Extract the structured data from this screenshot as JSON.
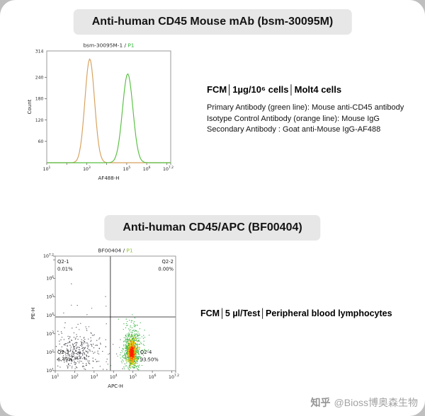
{
  "page": {
    "watermark_brand": "知乎",
    "watermark_handle": "@Bioss博奥森生物"
  },
  "panel_top": {
    "title": "Anti-human CD45 Mouse mAb (bsm-30095M)",
    "info_header": "FCM│1µg/10⁶ cells│Molt4 cells",
    "info_lines": [
      "Primary Antibody (green line): Mouse anti-CD45 antibody",
      "Isotype Control Antibody (orange line): Mouse IgG",
      "Secondary Antibody : Goat anti-Mouse IgG-AF488"
    ]
  },
  "panel_bottom": {
    "title": "Anti-human CD45/APC (BF00404)",
    "info_header": "FCM│5 µl/Test│Peripheral blood lymphocytes"
  },
  "chart_data": [
    {
      "type": "histogram",
      "title": "bsm-30095M-1 /",
      "gate_label": "P1",
      "gate_color": "#2eb334",
      "xlabel": "AF488-H",
      "ylabel": "Count",
      "x_log_range": [
        1,
        7.2
      ],
      "x_ticks": [
        {
          "v": 1,
          "label": "1"
        },
        {
          "v": 3,
          "label": "3"
        },
        {
          "v": 5,
          "label": "5"
        },
        {
          "v": 6,
          "label": "6"
        },
        {
          "v": 7.2,
          "label": "7.2"
        }
      ],
      "y_max": 314,
      "y_max_label": "314",
      "y_ticks": [
        60,
        120,
        180,
        240
      ],
      "series": [
        {
          "name": "Isotype Control Antibody (Mouse IgG, orange line)",
          "color": "#d6a05c",
          "center": 3.15,
          "sigma": 0.24,
          "peak": 292
        },
        {
          "name": "Primary Antibody (Mouse anti-CD45, green line)",
          "color": "#58bf42",
          "center": 5.05,
          "sigma": 0.26,
          "peak": 250
        }
      ]
    },
    {
      "type": "scatter",
      "title": "BF00404 /",
      "gate_label": "P1",
      "gate_color": "#8fc31f",
      "xlabel": "APC-H",
      "ylabel": "PE-H",
      "x_log_range": [
        1,
        7.2
      ],
      "y_log_range": [
        1,
        7.2
      ],
      "x_ticks": [
        {
          "v": 1,
          "label": "1"
        },
        {
          "v": 2,
          "label": "2"
        },
        {
          "v": 3,
          "label": "3"
        },
        {
          "v": 4,
          "label": "4"
        },
        {
          "v": 5,
          "label": "5"
        },
        {
          "v": 6,
          "label": "6"
        },
        {
          "v": 7.2,
          "label": "7.2"
        }
      ],
      "y_ticks": [
        {
          "v": 1,
          "label": "1"
        },
        {
          "v": 2,
          "label": "2"
        },
        {
          "v": 3,
          "label": "3"
        },
        {
          "v": 4,
          "label": "4"
        },
        {
          "v": 5,
          "label": "5"
        },
        {
          "v": 6,
          "label": "6"
        },
        {
          "v": 7.2,
          "label": "7.2"
        }
      ],
      "gate": {
        "x": 3.84,
        "y": 3.91
      },
      "quadrants": [
        {
          "name": "Q2-1",
          "pct": "0.01%",
          "pos": "tl"
        },
        {
          "name": "Q2-2",
          "pct": "0.00%",
          "pos": "tr"
        },
        {
          "name": "Q2-3",
          "pct": "6.49%",
          "pos": "bl"
        },
        {
          "name": "Q2-4",
          "pct": "93.50%",
          "pos": "br"
        }
      ],
      "clusters": [
        {
          "name": "negative-lymphocytes",
          "color": "#3a3a44",
          "cx": 2.2,
          "cy": 2.0,
          "sx": 0.5,
          "sy": 0.55,
          "count": 300,
          "r": 0.65
        },
        {
          "name": "negative-sparse",
          "color": "#3a3a44",
          "cx": 2.6,
          "cy": 2.3,
          "sx": 1.1,
          "sy": 0.9,
          "count": 70,
          "r": 0.6
        },
        {
          "name": "rare-upper-events",
          "color": "#3a3a44",
          "cx": 3.0,
          "cy": 4.8,
          "sx": 1.2,
          "sy": 0.6,
          "count": 4,
          "r": 0.6
        },
        {
          "name": "cd45pos-halo",
          "color": "#2fae3c",
          "cx": 4.95,
          "cy": 2.1,
          "sx": 0.3,
          "sy": 0.75,
          "count": 250,
          "r": 0.65
        },
        {
          "name": "cd45pos-density-green",
          "color": "#2fae3c",
          "cx": 4.95,
          "cy": 2.1,
          "sx": 0.18,
          "sy": 0.5,
          "count": 500,
          "r": 0.7
        },
        {
          "name": "cd45pos-density-yellow",
          "color": "#f2d600",
          "cx": 4.95,
          "cy": 2.05,
          "sx": 0.12,
          "sy": 0.35,
          "count": 300,
          "r": 0.7
        },
        {
          "name": "cd45pos-density-orange",
          "color": "#ff8a00",
          "cx": 4.95,
          "cy": 2.0,
          "sx": 0.08,
          "sy": 0.24,
          "count": 220,
          "r": 0.7
        },
        {
          "name": "cd45pos-density-red",
          "color": "#ff2000",
          "cx": 4.95,
          "cy": 1.98,
          "sx": 0.05,
          "sy": 0.15,
          "count": 180,
          "r": 0.7
        }
      ]
    }
  ]
}
